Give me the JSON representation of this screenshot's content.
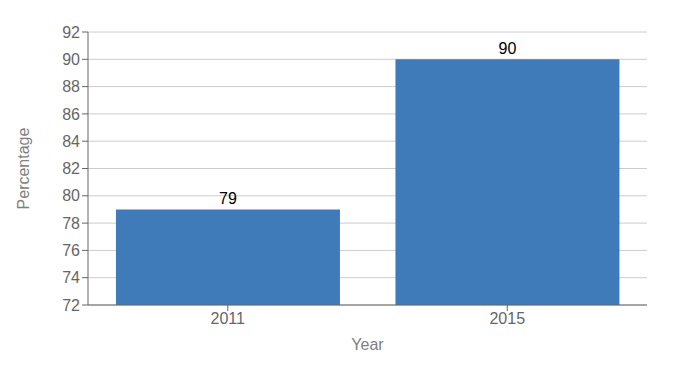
{
  "chart_data": {
    "type": "bar",
    "categories": [
      "2011",
      "2015"
    ],
    "values": [
      79,
      90
    ],
    "color": "#3E7BB8",
    "xlabel": "Year",
    "ylabel": "Percentage",
    "ylim": [
      72,
      92
    ],
    "yticks": [
      72,
      74,
      76,
      78,
      80,
      82,
      84,
      86,
      88,
      90,
      92
    ],
    "grid": true,
    "data_labels": true
  }
}
